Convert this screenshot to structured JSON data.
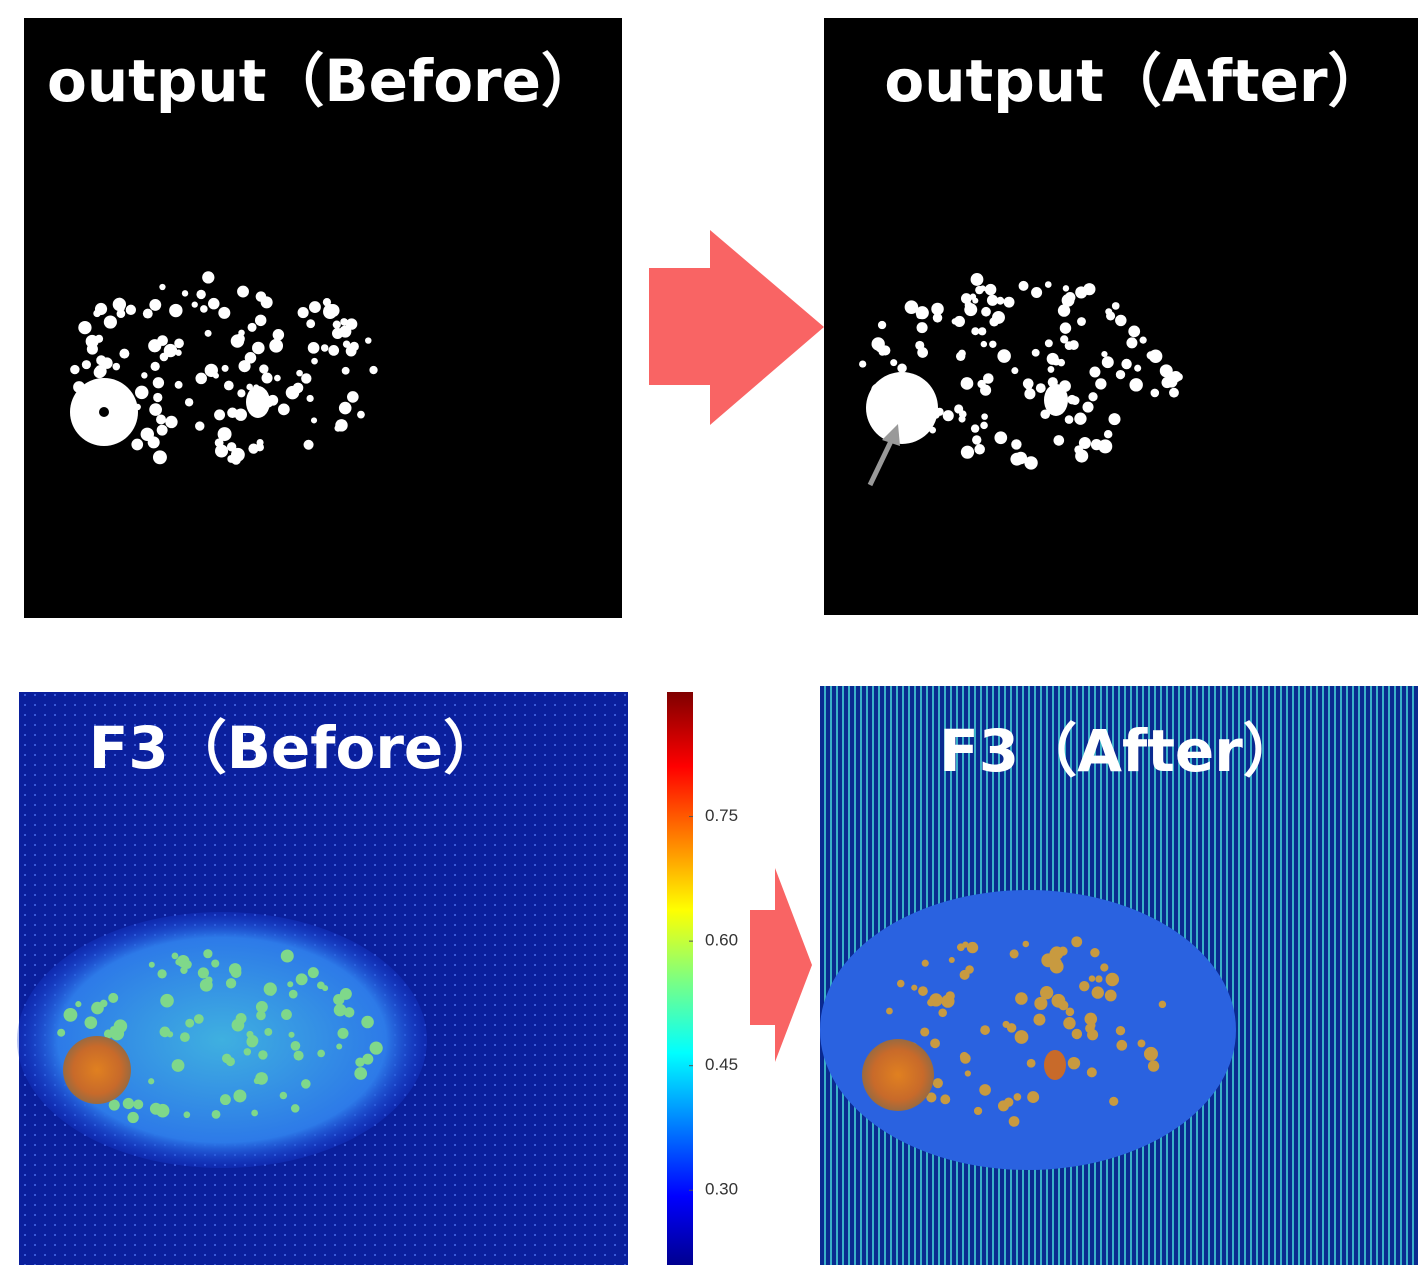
{
  "panels": {
    "output_before": {
      "title": "output（Before）"
    },
    "output_after": {
      "title": "output（After）"
    },
    "f3_before": {
      "title": "F3（Before）"
    },
    "f3_after": {
      "title": "F3（After）"
    }
  },
  "colorbar": {
    "lim": [
      0.21,
      0.9
    ],
    "ticks": [
      {
        "value": 0.3,
        "label": "0.30"
      },
      0.45,
      {
        "value": 0.6,
        "label": "0.60"
      },
      0.75
    ]
  }
}
